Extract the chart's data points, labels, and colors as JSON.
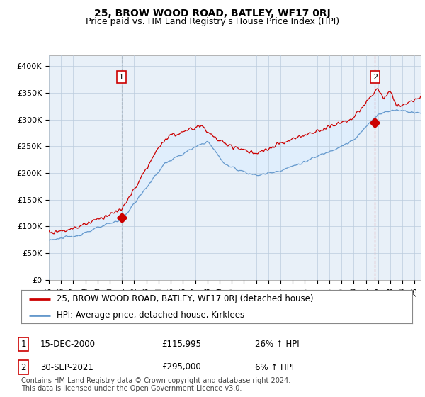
{
  "title": "25, BROW WOOD ROAD, BATLEY, WF17 0RJ",
  "subtitle": "Price paid vs. HM Land Registry's House Price Index (HPI)",
  "ylabel_ticks": [
    "£0",
    "£50K",
    "£100K",
    "£150K",
    "£200K",
    "£250K",
    "£300K",
    "£350K",
    "£400K"
  ],
  "ytick_values": [
    0,
    50000,
    100000,
    150000,
    200000,
    250000,
    300000,
    350000,
    400000
  ],
  "ylim": [
    0,
    420000
  ],
  "xlim_start": 1995.0,
  "xlim_end": 2025.5,
  "line_color_red": "#cc0000",
  "line_color_blue": "#6699cc",
  "fill_color": "#ddeeff",
  "plot_bg_color": "#e8f0f8",
  "point1_x": 2000.958,
  "point1_y": 115995,
  "point2_x": 2021.75,
  "point2_y": 295000,
  "legend_line1": "25, BROW WOOD ROAD, BATLEY, WF17 0RJ (detached house)",
  "legend_line2": "HPI: Average price, detached house, Kirklees",
  "table_row1_num": "1",
  "table_row1_date": "15-DEC-2000",
  "table_row1_price": "£115,995",
  "table_row1_hpi": "26% ↑ HPI",
  "table_row2_num": "2",
  "table_row2_date": "30-SEP-2021",
  "table_row2_price": "£295,000",
  "table_row2_hpi": "6% ↑ HPI",
  "footer": "Contains HM Land Registry data © Crown copyright and database right 2024.\nThis data is licensed under the Open Government Licence v3.0.",
  "background_color": "#ffffff",
  "grid_color": "#bbccdd",
  "title_fontsize": 10,
  "subtitle_fontsize": 9,
  "tick_fontsize": 8,
  "legend_fontsize": 8.5,
  "table_fontsize": 8.5,
  "footer_fontsize": 7
}
